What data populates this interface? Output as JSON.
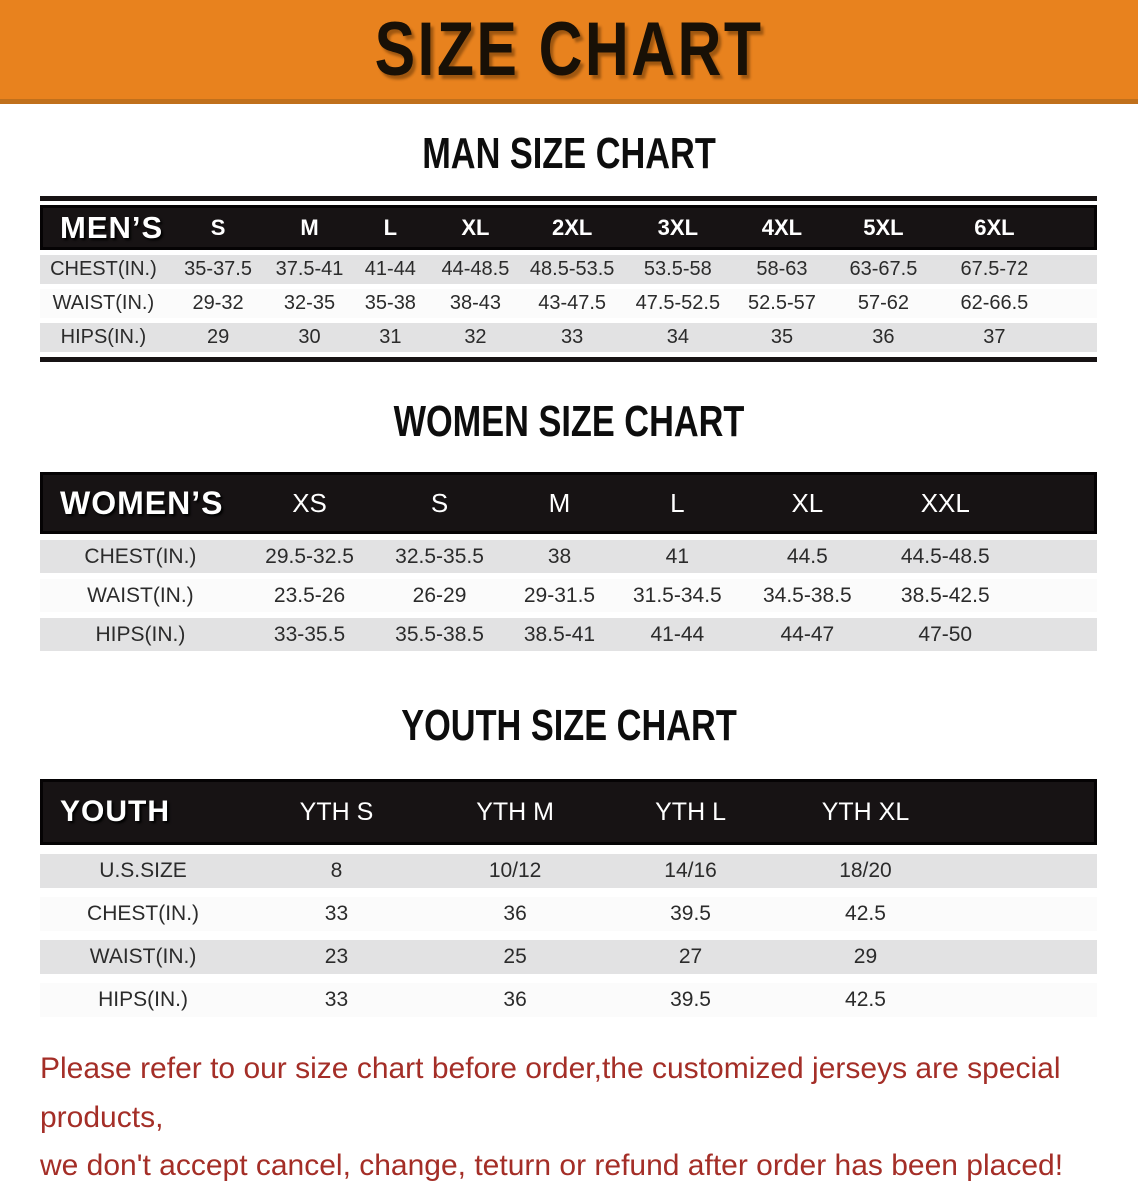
{
  "banner": {
    "title": "SIZE CHART"
  },
  "colors": {
    "banner_bg": "#e8821e",
    "header_bar": "#171314",
    "row_alt": "#e2e2e3",
    "row_light": "#fbfbfb",
    "footer_text": "#a42e27"
  },
  "tables": {
    "men": {
      "heading": "MAN SIZE CHART",
      "label": "MEN’S",
      "sizes": [
        "S",
        "M",
        "L",
        "XL",
        "2XL",
        "3XL",
        "4XL",
        "5XL",
        "6XL"
      ],
      "rows": [
        {
          "label": "CHEST(IN.)",
          "values": [
            "35-37.5",
            "37.5-41",
            "41-44",
            "44-48.5",
            "48.5-53.5",
            "53.5-58",
            "58-63",
            "63-67.5",
            "67.5-72"
          ]
        },
        {
          "label": "WAIST(IN.)",
          "values": [
            "29-32",
            "32-35",
            "35-38",
            "38-43",
            "43-47.5",
            "47.5-52.5",
            "52.5-57",
            "57-62",
            "62-66.5"
          ]
        },
        {
          "label": "HIPS(IN.)",
          "values": [
            "29",
            "30",
            "31",
            "32",
            "33",
            "34",
            "35",
            "36",
            "37"
          ]
        }
      ]
    },
    "women": {
      "heading": "WOMEN SIZE CHART",
      "label": "WOMEN’S",
      "sizes": [
        "XS",
        "S",
        "M",
        "L",
        "XL",
        "XXL"
      ],
      "rows": [
        {
          "label": "CHEST(IN.)",
          "values": [
            "29.5-32.5",
            "32.5-35.5",
            "38",
            "41",
            "44.5",
            "44.5-48.5"
          ]
        },
        {
          "label": "WAIST(IN.)",
          "values": [
            "23.5-26",
            "26-29",
            "29-31.5",
            "31.5-34.5",
            "34.5-38.5",
            "38.5-42.5"
          ]
        },
        {
          "label": "HIPS(IN.)",
          "values": [
            "33-35.5",
            "35.5-38.5",
            "38.5-41",
            "41-44",
            "44-47",
            "47-50"
          ]
        }
      ]
    },
    "youth": {
      "heading": "YOUTH SIZE CHART",
      "label": "YOUTH",
      "sizes": [
        "YTH S",
        "YTH M",
        "YTH L",
        "YTH XL"
      ],
      "rows": [
        {
          "label": "U.S.SIZE",
          "values": [
            "8",
            "10/12",
            "14/16",
            "18/20"
          ]
        },
        {
          "label": "CHEST(IN.)",
          "values": [
            "33",
            "36",
            "39.5",
            "42.5"
          ]
        },
        {
          "label": "WAIST(IN.)",
          "values": [
            "23",
            "25",
            "27",
            "29"
          ]
        },
        {
          "label": "HIPS(IN.)",
          "values": [
            "33",
            "36",
            "39.5",
            "42.5"
          ]
        }
      ]
    }
  },
  "footer": {
    "line1": "Please refer to our size chart before order,the customized jerseys are special products,",
    "line2": "we don't accept cancel, change, teturn or refund after order has been placed!"
  }
}
